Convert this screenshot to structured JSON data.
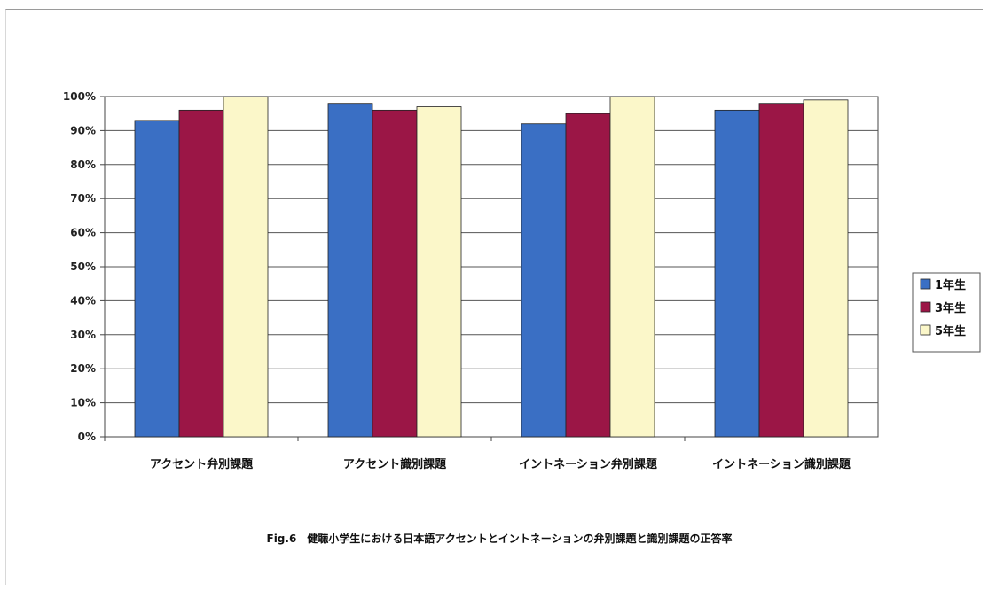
{
  "chart_data": {
    "type": "bar",
    "categories": [
      "アクセント弁別課題",
      "アクセント識別課題",
      "イントネーション弁別課題",
      "イントネーション識別課題"
    ],
    "series": [
      {
        "name": "1年生",
        "values": [
          93,
          98,
          92,
          96
        ],
        "color": "#3a6fc4"
      },
      {
        "name": "3年生",
        "values": [
          96,
          96,
          95,
          98
        ],
        "color": "#9b1646"
      },
      {
        "name": "5年生",
        "values": [
          100,
          97,
          100,
          99
        ],
        "color": "#fbf7c9"
      }
    ],
    "ylim": [
      0,
      100
    ],
    "yticks": [
      "0%",
      "10%",
      "20%",
      "30%",
      "40%",
      "50%",
      "60%",
      "70%",
      "80%",
      "90%",
      "100%"
    ],
    "grid": true,
    "legend_position": "right",
    "caption": "Fig.6　健聴小学生における日本語アクセントとイントネーションの弁別課題と識別課題の正答率"
  }
}
